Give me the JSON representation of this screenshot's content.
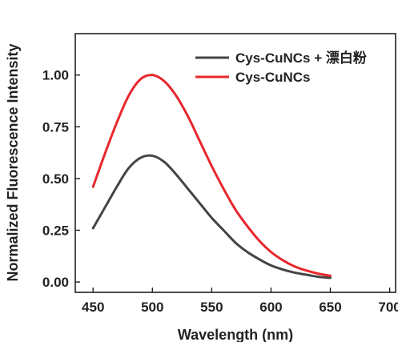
{
  "chart_data": {
    "type": "line",
    "title": "",
    "xlabel": "Wavelength (nm)",
    "ylabel": "Normalized Fluorescence Intensity",
    "xlim": [
      435,
      705
    ],
    "ylim": [
      -0.05,
      1.2
    ],
    "xticks": [
      450,
      500,
      550,
      600,
      650,
      700
    ],
    "xtick_labels": [
      "450",
      "500",
      "550",
      "600",
      "650",
      "700"
    ],
    "yticks": [
      0.0,
      0.25,
      0.5,
      0.75,
      1.0
    ],
    "ytick_labels": [
      "0.00",
      "0.25",
      "0.50",
      "0.75",
      "1.00"
    ],
    "grid": false,
    "legend_position": "top-right",
    "x": [
      450,
      460,
      470,
      480,
      490,
      500,
      510,
      520,
      530,
      540,
      550,
      560,
      570,
      580,
      590,
      600,
      610,
      620,
      630,
      640,
      650
    ],
    "series": [
      {
        "name": "Cys-CuNCs + 漂白粉",
        "color": "#444444",
        "values": [
          0.26,
          0.36,
          0.46,
          0.55,
          0.6,
          0.61,
          0.58,
          0.52,
          0.45,
          0.38,
          0.31,
          0.25,
          0.19,
          0.145,
          0.11,
          0.08,
          0.06,
          0.045,
          0.035,
          0.025,
          0.02
        ]
      },
      {
        "name": "Cys-CuNCs",
        "color": "#e8272d",
        "values": [
          0.46,
          0.62,
          0.77,
          0.9,
          0.98,
          1.0,
          0.97,
          0.9,
          0.8,
          0.68,
          0.56,
          0.45,
          0.35,
          0.27,
          0.2,
          0.145,
          0.105,
          0.075,
          0.055,
          0.04,
          0.03
        ]
      }
    ]
  }
}
